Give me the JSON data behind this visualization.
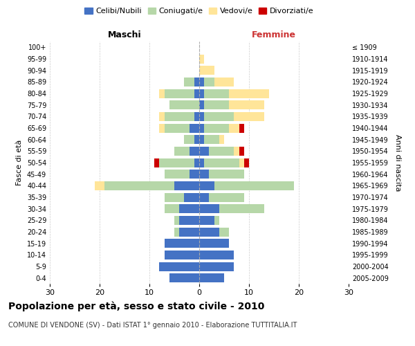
{
  "age_groups": [
    "0-4",
    "5-9",
    "10-14",
    "15-19",
    "20-24",
    "25-29",
    "30-34",
    "35-39",
    "40-44",
    "45-49",
    "50-54",
    "55-59",
    "60-64",
    "65-69",
    "70-74",
    "75-79",
    "80-84",
    "85-89",
    "90-94",
    "95-99",
    "100+"
  ],
  "birth_years": [
    "2005-2009",
    "2000-2004",
    "1995-1999",
    "1990-1994",
    "1985-1989",
    "1980-1984",
    "1975-1979",
    "1970-1974",
    "1965-1969",
    "1960-1964",
    "1955-1959",
    "1950-1954",
    "1945-1949",
    "1940-1944",
    "1935-1939",
    "1930-1934",
    "1925-1929",
    "1920-1924",
    "1915-1919",
    "1910-1914",
    "≤ 1909"
  ],
  "males": {
    "celibi": [
      6,
      8,
      7,
      7,
      4,
      4,
      4,
      3,
      5,
      2,
      1,
      2,
      1,
      2,
      1,
      0,
      1,
      1,
      0,
      0,
      0
    ],
    "coniugati": [
      0,
      0,
      0,
      0,
      1,
      1,
      3,
      4,
      14,
      5,
      7,
      3,
      2,
      5,
      6,
      6,
      6,
      2,
      0,
      0,
      0
    ],
    "vedovi": [
      0,
      0,
      0,
      0,
      0,
      0,
      0,
      0,
      2,
      0,
      0,
      0,
      0,
      1,
      1,
      0,
      1,
      0,
      0,
      0,
      0
    ],
    "divorziati": [
      0,
      0,
      0,
      0,
      0,
      0,
      0,
      0,
      0,
      0,
      1,
      0,
      0,
      0,
      0,
      0,
      0,
      0,
      0,
      0,
      0
    ]
  },
  "females": {
    "nubili": [
      5,
      7,
      7,
      6,
      4,
      3,
      4,
      2,
      3,
      2,
      1,
      2,
      1,
      1,
      1,
      1,
      1,
      1,
      0,
      0,
      0
    ],
    "coniugate": [
      0,
      0,
      0,
      0,
      2,
      1,
      9,
      7,
      16,
      7,
      7,
      5,
      3,
      5,
      6,
      5,
      5,
      2,
      0,
      0,
      0
    ],
    "vedove": [
      0,
      0,
      0,
      0,
      0,
      0,
      0,
      0,
      0,
      0,
      1,
      1,
      1,
      2,
      6,
      7,
      8,
      4,
      3,
      1,
      0
    ],
    "divorziate": [
      0,
      0,
      0,
      0,
      0,
      0,
      0,
      0,
      0,
      0,
      1,
      1,
      0,
      1,
      0,
      0,
      0,
      0,
      0,
      0,
      0
    ]
  },
  "colors": {
    "celibi_nubili": "#4472c4",
    "coniugati": "#b6d7a8",
    "vedovi": "#ffe599",
    "divorziati": "#cc0000"
  },
  "xlim": 30,
  "title": "Popolazione per età, sesso e stato civile - 2010",
  "subtitle": "COMUNE DI VENDONE (SV) - Dati ISTAT 1° gennaio 2010 - Elaborazione TUTTITALIA.IT",
  "xlabel_left": "Maschi",
  "xlabel_right": "Femmine",
  "ylabel_left": "Fasce di età",
  "ylabel_right": "Anni di nascita",
  "legend_labels": [
    "Celibi/Nubili",
    "Coniugati/e",
    "Vedovi/e",
    "Divorziati/e"
  ],
  "background_color": "#ffffff",
  "grid_color": "#cccccc"
}
